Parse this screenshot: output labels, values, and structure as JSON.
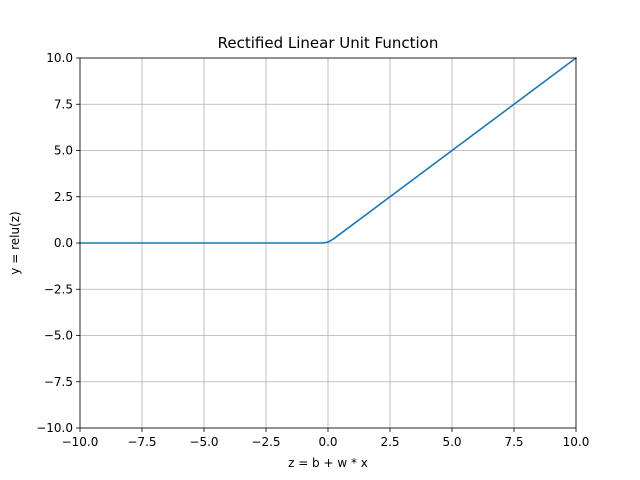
{
  "chart_data": {
    "type": "line",
    "title": "Rectified Linear Unit Function",
    "xlabel": "z = b + w * x",
    "ylabel": "y = relu(z)",
    "xlim": [
      -10,
      10
    ],
    "ylim": [
      -10,
      10
    ],
    "grid": true,
    "xticks": [
      -10,
      -7.5,
      -5,
      -2.5,
      0,
      2.5,
      5,
      7.5,
      10
    ],
    "yticks": [
      -10,
      -7.5,
      -5,
      -2.5,
      0,
      2.5,
      5,
      7.5,
      10
    ],
    "xtick_labels": [
      "−10.0",
      "−7.5",
      "−5.0",
      "−2.5",
      "0.0",
      "2.5",
      "5.0",
      "7.5",
      "10.0"
    ],
    "ytick_labels": [
      "−10.0",
      "−7.5",
      "−5.0",
      "−2.5",
      "0.0",
      "2.5",
      "5.0",
      "7.5",
      "10.0"
    ],
    "series": [
      {
        "color": "#1f77b4",
        "x": [
          -10,
          -0.2,
          0,
          0.2,
          10
        ],
        "y": [
          0,
          0,
          0.05,
          0.2,
          10
        ]
      }
    ]
  }
}
